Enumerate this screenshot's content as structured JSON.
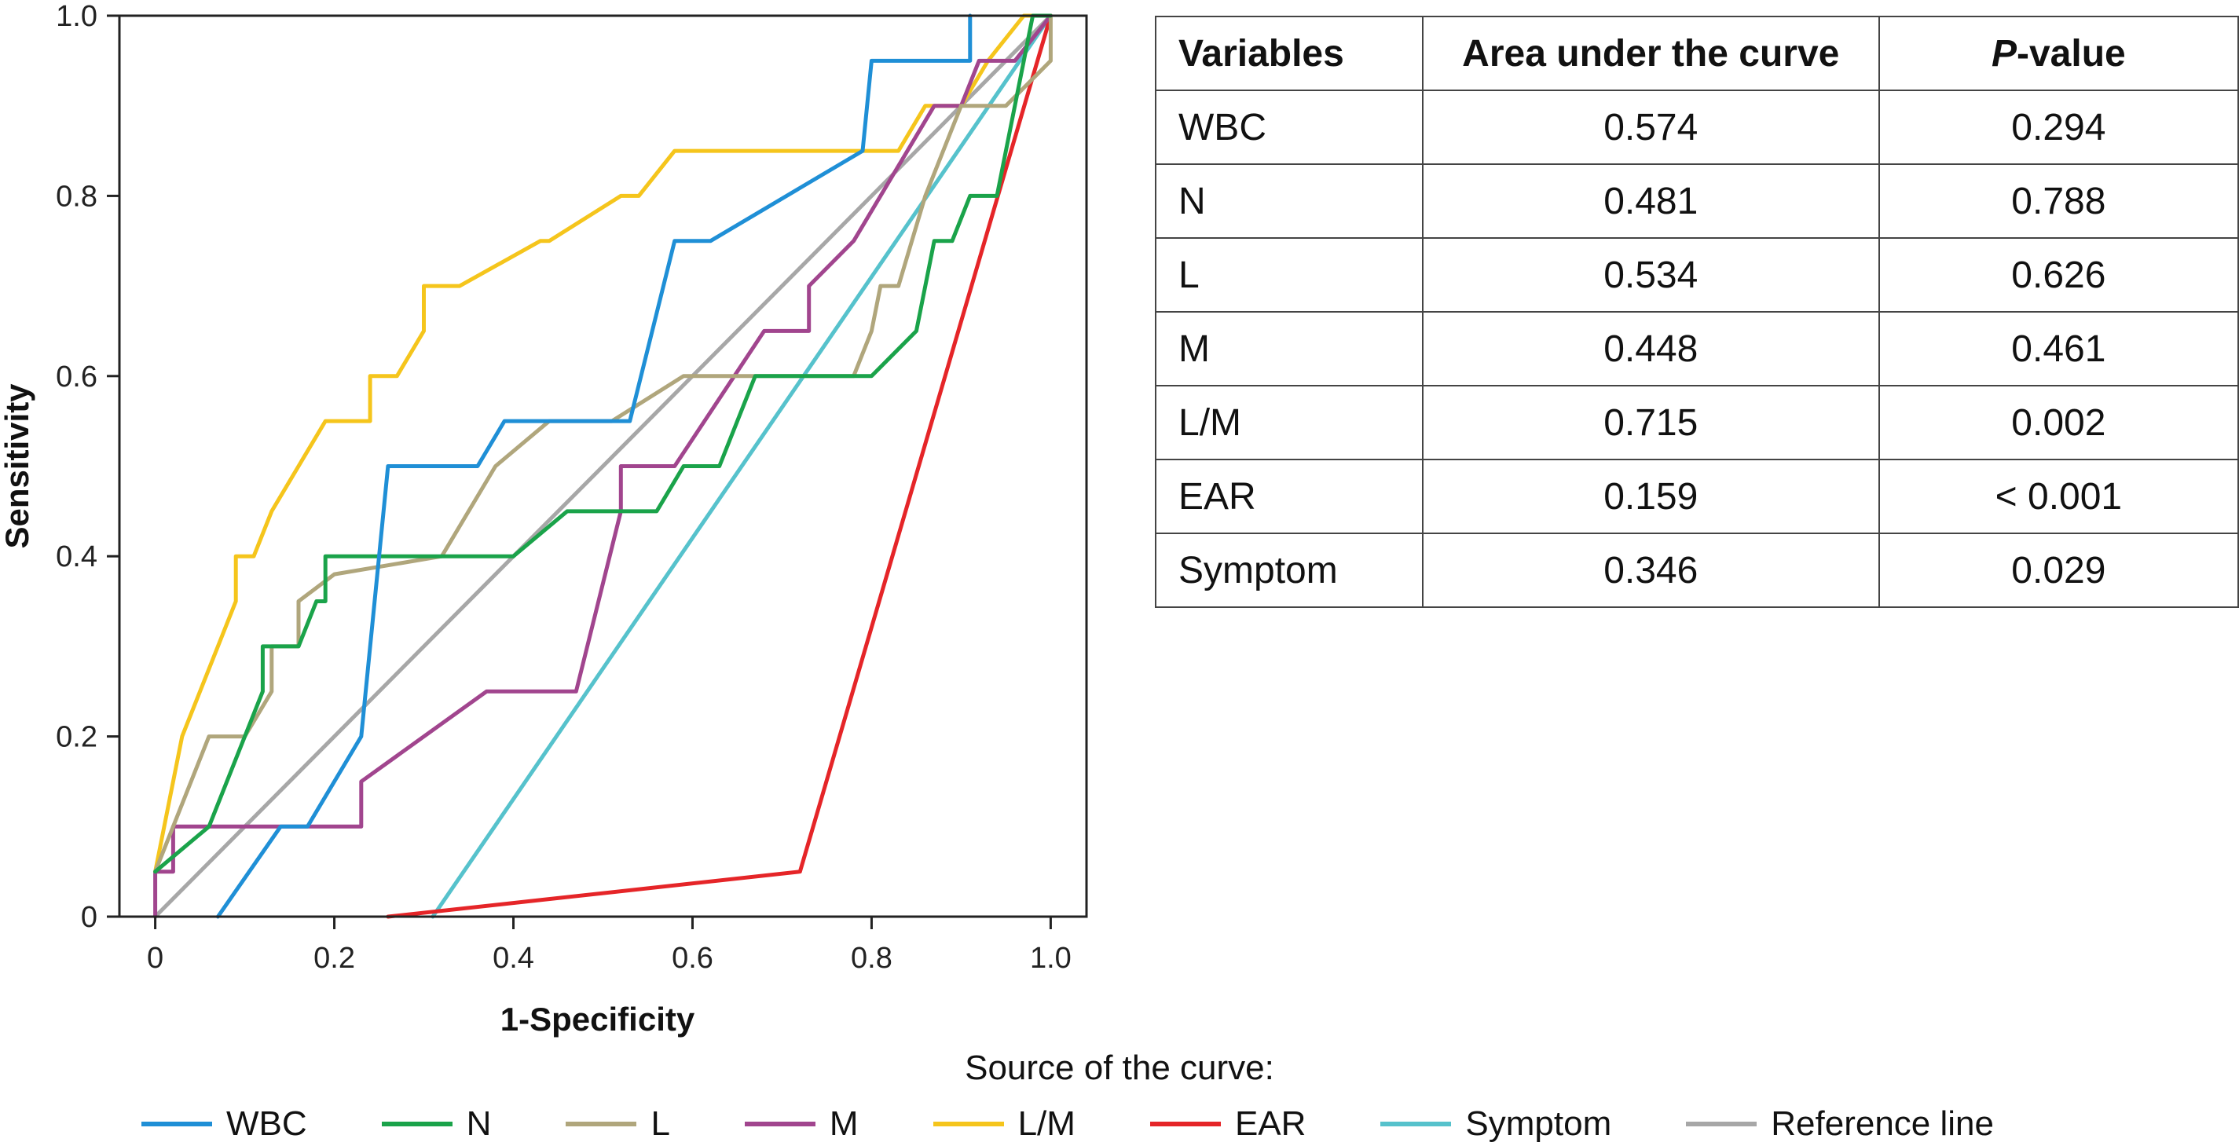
{
  "chart_data": {
    "type": "line",
    "xlabel": "1-Specificity",
    "ylabel": "Sensitivity",
    "xlim": [
      -0.04,
      1.04
    ],
    "ylim": [
      0,
      1.0
    ],
    "x_ticks": [
      "0",
      "0.2",
      "0.4",
      "0.6",
      "0.8",
      "1.0"
    ],
    "y_ticks": [
      "0",
      "0.2",
      "0.4",
      "0.6",
      "0.8",
      "1.0"
    ],
    "grid": false,
    "legend_title": "Source of the curve:",
    "legend_position": "bottom",
    "series": [
      {
        "name": "WBC",
        "color": "#1f8fd6",
        "points": [
          [
            0.07,
            0
          ],
          [
            0.14,
            0.1
          ],
          [
            0.17,
            0.1
          ],
          [
            0.23,
            0.2
          ],
          [
            0.26,
            0.5
          ],
          [
            0.36,
            0.5
          ],
          [
            0.39,
            0.55
          ],
          [
            0.53,
            0.55
          ],
          [
            0.58,
            0.75
          ],
          [
            0.62,
            0.75
          ],
          [
            0.79,
            0.85
          ],
          [
            0.8,
            0.95
          ],
          [
            0.91,
            0.95
          ],
          [
            0.91,
            1.0
          ]
        ]
      },
      {
        "name": "N",
        "color": "#1aa34a",
        "points": [
          [
            0,
            0.05
          ],
          [
            0.06,
            0.1
          ],
          [
            0.12,
            0.25
          ],
          [
            0.12,
            0.3
          ],
          [
            0.16,
            0.3
          ],
          [
            0.18,
            0.35
          ],
          [
            0.19,
            0.35
          ],
          [
            0.19,
            0.4
          ],
          [
            0.4,
            0.4
          ],
          [
            0.46,
            0.45
          ],
          [
            0.56,
            0.45
          ],
          [
            0.59,
            0.5
          ],
          [
            0.63,
            0.5
          ],
          [
            0.67,
            0.6
          ],
          [
            0.8,
            0.6
          ],
          [
            0.85,
            0.65
          ],
          [
            0.86,
            0.7
          ],
          [
            0.87,
            0.75
          ],
          [
            0.89,
            0.75
          ],
          [
            0.91,
            0.8
          ],
          [
            0.94,
            0.8
          ],
          [
            0.97,
            0.95
          ],
          [
            0.98,
            1.0
          ],
          [
            1.0,
            1.0
          ]
        ]
      },
      {
        "name": "L",
        "color": "#b0a67c",
        "points": [
          [
            0,
            0.05
          ],
          [
            0.02,
            0.1
          ],
          [
            0.06,
            0.2
          ],
          [
            0.1,
            0.2
          ],
          [
            0.13,
            0.25
          ],
          [
            0.13,
            0.3
          ],
          [
            0.16,
            0.3
          ],
          [
            0.16,
            0.35
          ],
          [
            0.2,
            0.38
          ],
          [
            0.32,
            0.4
          ],
          [
            0.38,
            0.5
          ],
          [
            0.44,
            0.55
          ],
          [
            0.51,
            0.55
          ],
          [
            0.59,
            0.6
          ],
          [
            0.78,
            0.6
          ],
          [
            0.8,
            0.65
          ],
          [
            0.81,
            0.7
          ],
          [
            0.83,
            0.7
          ],
          [
            0.86,
            0.8
          ],
          [
            0.9,
            0.9
          ],
          [
            0.95,
            0.9
          ],
          [
            1.0,
            0.95
          ],
          [
            1.0,
            1.0
          ]
        ]
      },
      {
        "name": "M",
        "color": "#a1458e",
        "points": [
          [
            0,
            0
          ],
          [
            0,
            0.05
          ],
          [
            0.02,
            0.05
          ],
          [
            0.02,
            0.1
          ],
          [
            0.23,
            0.1
          ],
          [
            0.23,
            0.15
          ],
          [
            0.37,
            0.25
          ],
          [
            0.47,
            0.25
          ],
          [
            0.52,
            0.45
          ],
          [
            0.52,
            0.5
          ],
          [
            0.58,
            0.5
          ],
          [
            0.68,
            0.65
          ],
          [
            0.73,
            0.65
          ],
          [
            0.73,
            0.7
          ],
          [
            0.78,
            0.75
          ],
          [
            0.87,
            0.9
          ],
          [
            0.9,
            0.9
          ],
          [
            0.92,
            0.95
          ],
          [
            0.96,
            0.95
          ],
          [
            1.0,
            1.0
          ]
        ]
      },
      {
        "name": "L/M",
        "color": "#f5c51c",
        "points": [
          [
            0,
            0.05
          ],
          [
            0.03,
            0.2
          ],
          [
            0.09,
            0.35
          ],
          [
            0.09,
            0.4
          ],
          [
            0.11,
            0.4
          ],
          [
            0.13,
            0.45
          ],
          [
            0.16,
            0.5
          ],
          [
            0.19,
            0.55
          ],
          [
            0.24,
            0.55
          ],
          [
            0.24,
            0.6
          ],
          [
            0.27,
            0.6
          ],
          [
            0.3,
            0.65
          ],
          [
            0.3,
            0.7
          ],
          [
            0.34,
            0.7
          ],
          [
            0.43,
            0.75
          ],
          [
            0.44,
            0.75
          ],
          [
            0.52,
            0.8
          ],
          [
            0.54,
            0.8
          ],
          [
            0.58,
            0.85
          ],
          [
            0.83,
            0.85
          ],
          [
            0.86,
            0.9
          ],
          [
            0.9,
            0.9
          ],
          [
            0.93,
            0.95
          ],
          [
            0.97,
            1.0
          ],
          [
            1.0,
            1.0
          ]
        ]
      },
      {
        "name": "EAR",
        "color": "#e52528",
        "points": [
          [
            0.26,
            0
          ],
          [
            0.72,
            0.05
          ],
          [
            1.0,
            1.0
          ]
        ]
      },
      {
        "name": "Symptom",
        "color": "#56c2cc",
        "points": [
          [
            0.31,
            0
          ],
          [
            1.0,
            1.0
          ]
        ]
      },
      {
        "name": "Reference line",
        "color": "#a7a7a7",
        "points": [
          [
            0,
            0
          ],
          [
            1.0,
            1.0
          ]
        ]
      }
    ]
  },
  "table": {
    "headers": {
      "variables": "Variables",
      "auc": "Area under the curve",
      "p_letter": "P",
      "p_rest": "-value"
    },
    "rows": [
      {
        "variable": "WBC",
        "auc": "0.574",
        "p": "0.294"
      },
      {
        "variable": "N",
        "auc": "0.481",
        "p": "0.788"
      },
      {
        "variable": "L",
        "auc": "0.534",
        "p": "0.626"
      },
      {
        "variable": "M",
        "auc": "0.448",
        "p": "0.461"
      },
      {
        "variable": "L/M",
        "auc": "0.715",
        "p": "0.002"
      },
      {
        "variable": "EAR",
        "auc": "0.159",
        "p": "< 0.001"
      },
      {
        "variable": "Symptom",
        "auc": "0.346",
        "p": "0.029"
      }
    ]
  }
}
